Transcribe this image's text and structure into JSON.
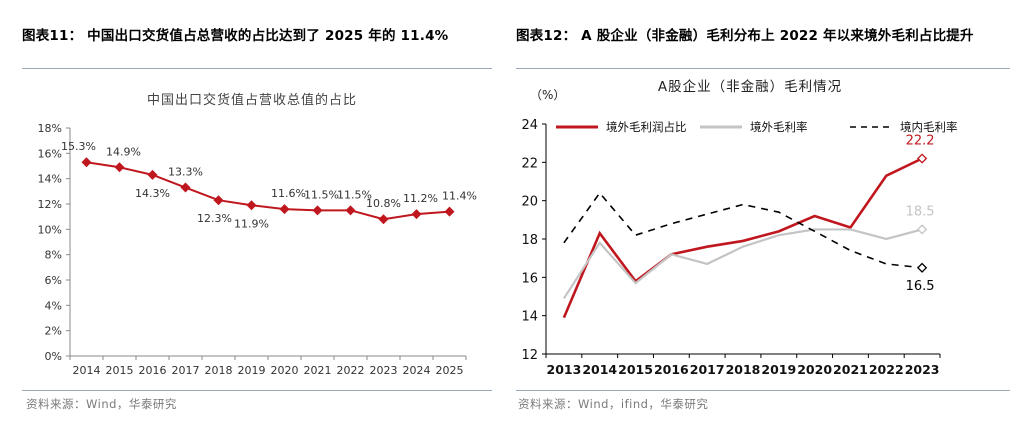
{
  "left": {
    "figure_title": "图表11：  中国出口交货值占总营收的占比达到了 2025 年的 11.4%",
    "source": "资料来源：Wind，华泰研究"
  },
  "right": {
    "figure_title": "图表12：  A 股企业（非金融）毛利分布上 2022 年以来境外毛利占比提升",
    "source": "资料来源：Wind，ifind，华泰研究"
  },
  "colors": {
    "red": "#c0171f",
    "gray": "#c4c4c4",
    "black": "#000000",
    "axis": "#8a8a8a",
    "tick_text": "#333333"
  },
  "chart_data": [
    {
      "type": "line",
      "title": "中国出口交货值占营收总值的占比",
      "categories": [
        "2014",
        "2015",
        "2016",
        "2017",
        "2018",
        "2019",
        "2020",
        "2021",
        "2022",
        "2023",
        "2024",
        "2025"
      ],
      "values": [
        15.3,
        14.9,
        14.3,
        13.3,
        12.3,
        11.9,
        11.6,
        11.5,
        11.5,
        10.8,
        11.2,
        11.4
      ],
      "data_labels": [
        "15.3%",
        "14.9%",
        "14.3%",
        "13.3%",
        "12.3%",
        "11.9%",
        "11.6%",
        "11.5%",
        "11.5%",
        "10.8%",
        "11.2%",
        "11.4%"
      ],
      "ylim": [
        0,
        18
      ],
      "yticks": [
        0,
        2,
        4,
        6,
        8,
        10,
        12,
        14,
        16,
        18
      ],
      "ytick_labels": [
        "0%",
        "2%",
        "4%",
        "6%",
        "8%",
        "10%",
        "12%",
        "14%",
        "16%",
        "18%"
      ],
      "xlabel": "",
      "ylabel": "",
      "grid": false,
      "marker": "diamond",
      "color": "#c0171f"
    },
    {
      "type": "line",
      "title": "A股企业（非金融）毛利情况",
      "ylabel": "（%）",
      "xlabel": "",
      "categories": [
        "2013",
        "2014",
        "2015",
        "2016",
        "2017",
        "2018",
        "2019",
        "2020",
        "2021",
        "2022",
        "2023"
      ],
      "ylim": [
        12,
        24
      ],
      "yticks": [
        12,
        14,
        16,
        18,
        20,
        22,
        24
      ],
      "ytick_labels": [
        "12",
        "14",
        "16",
        "18",
        "20",
        "22",
        "24"
      ],
      "grid": false,
      "legend_position": "top",
      "series": [
        {
          "name": "境外毛利润占比",
          "style": "solid",
          "color": "#c0171f",
          "values": [
            13.9,
            18.3,
            15.8,
            17.2,
            17.6,
            17.9,
            18.4,
            19.2,
            18.6,
            21.3,
            22.2
          ],
          "end_label": "22.2"
        },
        {
          "name": "境外毛利率",
          "style": "solid",
          "color": "#c4c4c4",
          "values": [
            14.9,
            17.8,
            15.7,
            17.2,
            16.7,
            17.6,
            18.2,
            18.5,
            18.5,
            18.0,
            18.5
          ],
          "end_label": "18.5"
        },
        {
          "name": "境内毛利率",
          "style": "dashed",
          "color": "#000000",
          "values": [
            17.8,
            20.4,
            18.2,
            18.8,
            19.3,
            19.8,
            19.4,
            18.4,
            17.4,
            16.7,
            16.5
          ],
          "end_label": "16.5"
        }
      ]
    }
  ]
}
